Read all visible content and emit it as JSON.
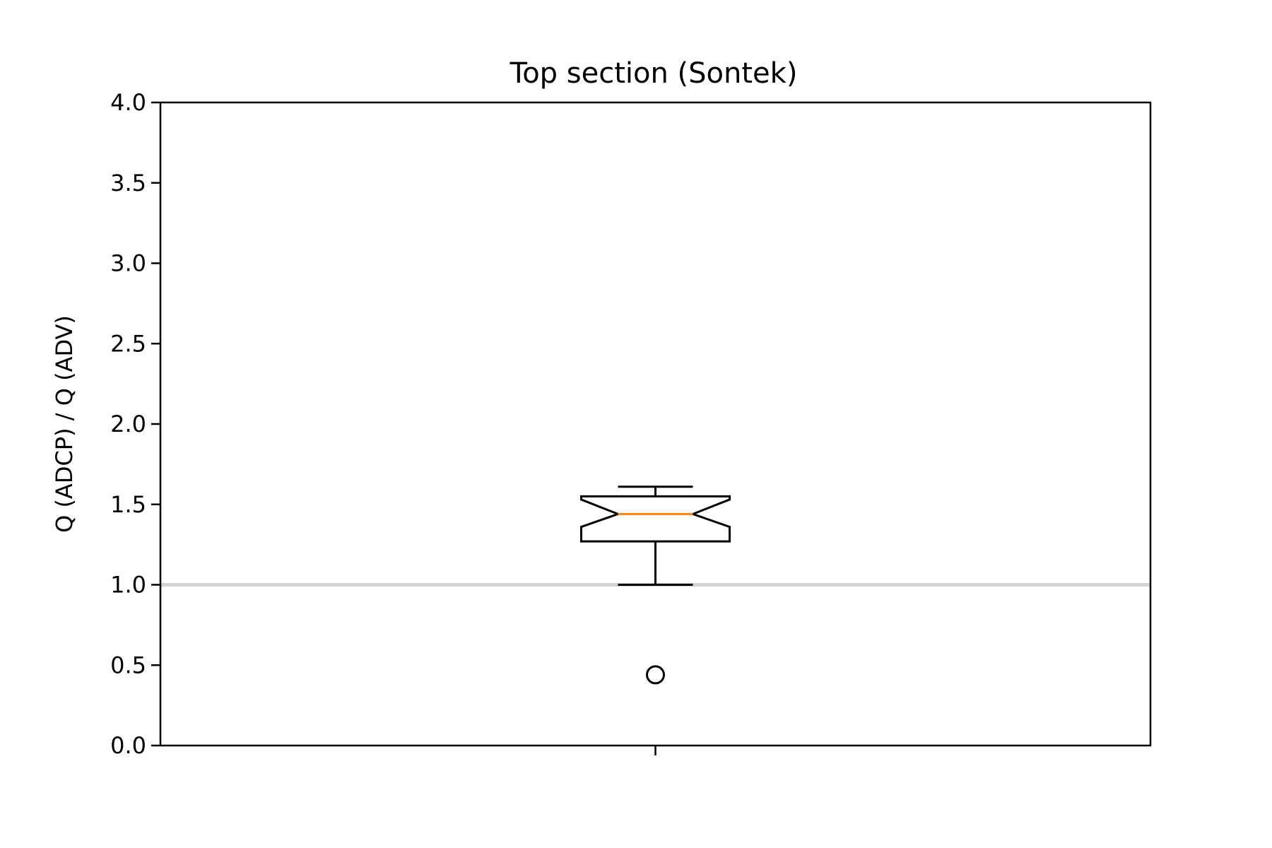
{
  "chart_data": {
    "type": "box",
    "title": "Top section (Sontek)",
    "xlabel": "",
    "ylabel": "Q (ADCP) / Q (ADV)",
    "ylim": [
      0.0,
      4.0
    ],
    "yticks": [
      "0.0",
      "0.5",
      "1.0",
      "1.5",
      "2.0",
      "2.5",
      "3.0",
      "3.5",
      "4.0"
    ],
    "grid": false,
    "notched": true,
    "reference_line": {
      "y": 1.0,
      "color": "#d3d3d3"
    },
    "boxes": [
      {
        "position": 1,
        "whisker_low": 1.0,
        "q1": 1.27,
        "notch_low": 1.36,
        "median": 1.44,
        "notch_high": 1.53,
        "q3": 1.55,
        "whisker_high": 1.61,
        "outliers": [
          0.44
        ]
      }
    ],
    "colors": {
      "box": "#000000",
      "median": "#ff7f0e",
      "reference": "#d3d3d3"
    }
  }
}
